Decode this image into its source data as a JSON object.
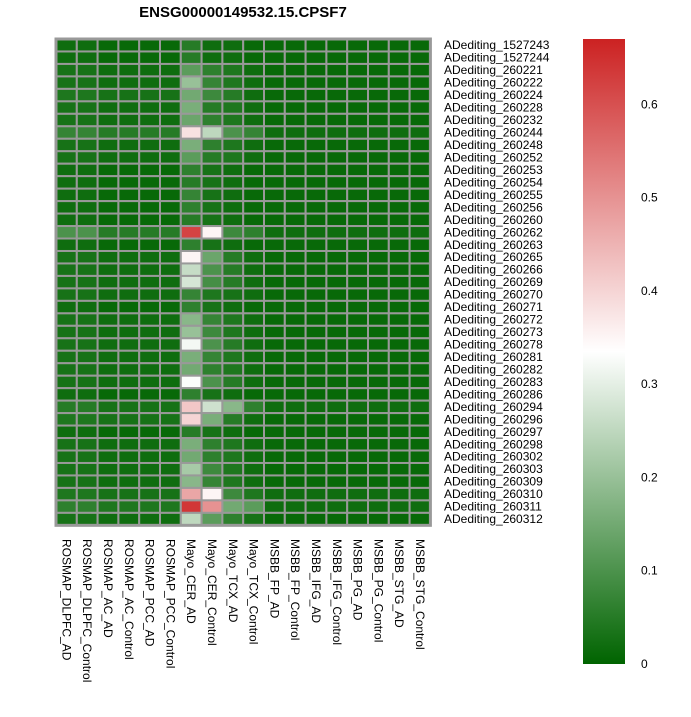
{
  "chart_data": {
    "type": "heatmap",
    "title": "ENSG00000149532.15.CPSF7",
    "columns": [
      "ROSMAP_DLPFC_AD",
      "ROSMAP_DLPFC_Control",
      "ROSMAP_AC_AD",
      "ROSMAP_AC_Control",
      "ROSMAP_PCC_AD",
      "ROSMAP_PCC_Control",
      "Mayo_CER_AD",
      "Mayo_CER_Control",
      "Mayo_TCX_AD",
      "Mayo_TCX_Control",
      "MSBB_FP_AD",
      "MSBB_FP_Control",
      "MSBB_IFG_AD",
      "MSBB_IFG_Control",
      "MSBB_PG_AD",
      "MSBB_PG_Control",
      "MSBB_STG_AD",
      "MSBB_STG_Control"
    ],
    "rows": [
      "ADediting_1527243",
      "ADediting_1527244",
      "ADediting_260221",
      "ADediting_260222",
      "ADediting_260224",
      "ADediting_260228",
      "ADediting_260232",
      "ADediting_260244",
      "ADediting_260248",
      "ADediting_260252",
      "ADediting_260253",
      "ADediting_260254",
      "ADediting_260255",
      "ADediting_260256",
      "ADediting_260260",
      "ADediting_260262",
      "ADediting_260263",
      "ADediting_260265",
      "ADediting_260266",
      "ADediting_260269",
      "ADediting_260270",
      "ADediting_260271",
      "ADediting_260272",
      "ADediting_260273",
      "ADediting_260278",
      "ADediting_260281",
      "ADediting_260282",
      "ADediting_260283",
      "ADediting_260286",
      "ADediting_260294",
      "ADediting_260296",
      "ADediting_260297",
      "ADediting_260298",
      "ADediting_260302",
      "ADediting_260303",
      "ADediting_260309",
      "ADediting_260310",
      "ADediting_260311",
      "ADediting_260312"
    ],
    "values": [
      [
        0.02,
        0.02,
        0.01,
        0.01,
        0.01,
        0.01,
        0.05,
        0.02,
        0.02,
        0.01,
        0.01,
        0.01,
        0.01,
        0.01,
        0.01,
        0.01,
        0.01,
        0.01
      ],
      [
        0.02,
        0.02,
        0.01,
        0.01,
        0.01,
        0.01,
        0.05,
        0.02,
        0.02,
        0.01,
        0.01,
        0.01,
        0.01,
        0.01,
        0.01,
        0.01,
        0.01,
        0.01
      ],
      [
        0.03,
        0.03,
        0.02,
        0.02,
        0.02,
        0.02,
        0.12,
        0.06,
        0.04,
        0.02,
        0.01,
        0.01,
        0.01,
        0.01,
        0.01,
        0.01,
        0.01,
        0.01
      ],
      [
        0.03,
        0.03,
        0.02,
        0.02,
        0.02,
        0.02,
        0.2,
        0.07,
        0.04,
        0.02,
        0.01,
        0.01,
        0.01,
        0.01,
        0.01,
        0.01,
        0.01,
        0.01
      ],
      [
        0.04,
        0.04,
        0.03,
        0.03,
        0.03,
        0.03,
        0.15,
        0.08,
        0.05,
        0.02,
        0.01,
        0.01,
        0.01,
        0.01,
        0.01,
        0.01,
        0.01,
        0.01
      ],
      [
        0.03,
        0.03,
        0.02,
        0.02,
        0.02,
        0.02,
        0.16,
        0.05,
        0.04,
        0.02,
        0.01,
        0.01,
        0.01,
        0.01,
        0.01,
        0.01,
        0.01,
        0.01
      ],
      [
        0.03,
        0.03,
        0.02,
        0.02,
        0.02,
        0.02,
        0.14,
        0.06,
        0.04,
        0.02,
        0.01,
        0.01,
        0.01,
        0.01,
        0.01,
        0.01,
        0.01,
        0.01
      ],
      [
        0.07,
        0.07,
        0.05,
        0.05,
        0.05,
        0.05,
        0.38,
        0.25,
        0.1,
        0.07,
        0.02,
        0.02,
        0.02,
        0.02,
        0.02,
        0.02,
        0.02,
        0.02
      ],
      [
        0.03,
        0.03,
        0.02,
        0.02,
        0.02,
        0.02,
        0.16,
        0.06,
        0.04,
        0.02,
        0.01,
        0.01,
        0.01,
        0.01,
        0.01,
        0.01,
        0.01,
        0.01
      ],
      [
        0.03,
        0.03,
        0.02,
        0.02,
        0.02,
        0.02,
        0.12,
        0.05,
        0.04,
        0.02,
        0.01,
        0.01,
        0.01,
        0.01,
        0.01,
        0.01,
        0.01,
        0.01
      ],
      [
        0.02,
        0.02,
        0.01,
        0.01,
        0.01,
        0.01,
        0.06,
        0.03,
        0.02,
        0.01,
        0.01,
        0.01,
        0.01,
        0.01,
        0.01,
        0.01,
        0.01,
        0.01
      ],
      [
        0.02,
        0.02,
        0.01,
        0.01,
        0.01,
        0.01,
        0.05,
        0.03,
        0.02,
        0.01,
        0.01,
        0.01,
        0.01,
        0.01,
        0.01,
        0.01,
        0.01,
        0.01
      ],
      [
        0.02,
        0.02,
        0.01,
        0.01,
        0.01,
        0.01,
        0.07,
        0.03,
        0.02,
        0.01,
        0.01,
        0.01,
        0.01,
        0.01,
        0.01,
        0.01,
        0.01,
        0.01
      ],
      [
        0.02,
        0.02,
        0.01,
        0.01,
        0.01,
        0.01,
        0.06,
        0.03,
        0.02,
        0.01,
        0.01,
        0.01,
        0.01,
        0.01,
        0.01,
        0.01,
        0.01,
        0.01
      ],
      [
        0.02,
        0.02,
        0.01,
        0.01,
        0.01,
        0.01,
        0.05,
        0.03,
        0.02,
        0.01,
        0.01,
        0.01,
        0.01,
        0.01,
        0.01,
        0.01,
        0.01,
        0.01
      ],
      [
        0.1,
        0.1,
        0.05,
        0.05,
        0.05,
        0.05,
        0.62,
        0.35,
        0.08,
        0.06,
        0.02,
        0.02,
        0.02,
        0.02,
        0.02,
        0.02,
        0.02,
        0.02
      ],
      [
        0.02,
        0.02,
        0.01,
        0.01,
        0.01,
        0.01,
        0.06,
        0.03,
        0.02,
        0.01,
        0.01,
        0.01,
        0.01,
        0.01,
        0.01,
        0.01,
        0.01,
        0.01
      ],
      [
        0.03,
        0.03,
        0.02,
        0.02,
        0.02,
        0.02,
        0.35,
        0.14,
        0.05,
        0.02,
        0.01,
        0.01,
        0.01,
        0.01,
        0.01,
        0.01,
        0.01,
        0.01
      ],
      [
        0.03,
        0.03,
        0.02,
        0.02,
        0.02,
        0.02,
        0.26,
        0.1,
        0.05,
        0.02,
        0.01,
        0.01,
        0.01,
        0.01,
        0.01,
        0.01,
        0.01,
        0.01
      ],
      [
        0.03,
        0.03,
        0.02,
        0.02,
        0.02,
        0.02,
        0.28,
        0.09,
        0.05,
        0.02,
        0.01,
        0.01,
        0.01,
        0.01,
        0.01,
        0.01,
        0.01,
        0.01
      ],
      [
        0.03,
        0.03,
        0.02,
        0.02,
        0.02,
        0.02,
        0.07,
        0.04,
        0.03,
        0.02,
        0.01,
        0.01,
        0.01,
        0.01,
        0.01,
        0.01,
        0.01,
        0.01
      ],
      [
        0.02,
        0.02,
        0.01,
        0.01,
        0.01,
        0.01,
        0.06,
        0.03,
        0.02,
        0.01,
        0.01,
        0.01,
        0.01,
        0.01,
        0.01,
        0.01,
        0.01,
        0.01
      ],
      [
        0.03,
        0.03,
        0.02,
        0.02,
        0.02,
        0.02,
        0.18,
        0.07,
        0.04,
        0.02,
        0.01,
        0.01,
        0.01,
        0.01,
        0.01,
        0.01,
        0.01,
        0.01
      ],
      [
        0.03,
        0.03,
        0.02,
        0.02,
        0.02,
        0.02,
        0.2,
        0.08,
        0.04,
        0.02,
        0.01,
        0.01,
        0.01,
        0.01,
        0.01,
        0.01,
        0.01,
        0.01
      ],
      [
        0.03,
        0.03,
        0.02,
        0.02,
        0.02,
        0.02,
        0.32,
        0.1,
        0.05,
        0.02,
        0.01,
        0.01,
        0.01,
        0.01,
        0.01,
        0.01,
        0.01,
        0.01
      ],
      [
        0.03,
        0.03,
        0.02,
        0.02,
        0.02,
        0.02,
        0.16,
        0.07,
        0.04,
        0.02,
        0.01,
        0.01,
        0.01,
        0.01,
        0.01,
        0.01,
        0.01,
        0.01
      ],
      [
        0.03,
        0.03,
        0.02,
        0.02,
        0.02,
        0.02,
        0.15,
        0.06,
        0.04,
        0.02,
        0.01,
        0.01,
        0.01,
        0.01,
        0.01,
        0.01,
        0.01,
        0.01
      ],
      [
        0.03,
        0.03,
        0.02,
        0.02,
        0.02,
        0.02,
        0.33,
        0.1,
        0.05,
        0.02,
        0.01,
        0.01,
        0.01,
        0.01,
        0.01,
        0.01,
        0.01,
        0.01
      ],
      [
        0.02,
        0.02,
        0.01,
        0.01,
        0.01,
        0.01,
        0.06,
        0.03,
        0.02,
        0.01,
        0.01,
        0.01,
        0.01,
        0.01,
        0.01,
        0.01,
        0.01,
        0.01
      ],
      [
        0.05,
        0.05,
        0.03,
        0.03,
        0.03,
        0.03,
        0.42,
        0.27,
        0.18,
        0.06,
        0.02,
        0.02,
        0.02,
        0.02,
        0.02,
        0.02,
        0.02,
        0.02
      ],
      [
        0.04,
        0.04,
        0.03,
        0.03,
        0.03,
        0.03,
        0.4,
        0.16,
        0.05,
        0.02,
        0.01,
        0.01,
        0.01,
        0.01,
        0.01,
        0.01,
        0.01,
        0.01
      ],
      [
        0.02,
        0.02,
        0.01,
        0.01,
        0.01,
        0.01,
        0.05,
        0.03,
        0.02,
        0.01,
        0.01,
        0.01,
        0.01,
        0.01,
        0.01,
        0.01,
        0.01,
        0.01
      ],
      [
        0.03,
        0.03,
        0.02,
        0.02,
        0.02,
        0.02,
        0.16,
        0.06,
        0.04,
        0.02,
        0.01,
        0.01,
        0.01,
        0.01,
        0.01,
        0.01,
        0.01,
        0.01
      ],
      [
        0.03,
        0.03,
        0.02,
        0.02,
        0.02,
        0.02,
        0.15,
        0.06,
        0.04,
        0.02,
        0.01,
        0.01,
        0.01,
        0.01,
        0.01,
        0.01,
        0.01,
        0.01
      ],
      [
        0.03,
        0.03,
        0.02,
        0.02,
        0.02,
        0.02,
        0.22,
        0.08,
        0.04,
        0.02,
        0.01,
        0.01,
        0.01,
        0.01,
        0.01,
        0.01,
        0.01,
        0.01
      ],
      [
        0.03,
        0.03,
        0.02,
        0.02,
        0.02,
        0.02,
        0.18,
        0.07,
        0.04,
        0.02,
        0.01,
        0.01,
        0.01,
        0.01,
        0.01,
        0.01,
        0.01,
        0.01
      ],
      [
        0.04,
        0.04,
        0.03,
        0.03,
        0.03,
        0.03,
        0.47,
        0.35,
        0.08,
        0.04,
        0.02,
        0.02,
        0.02,
        0.02,
        0.02,
        0.02,
        0.02,
        0.02
      ],
      [
        0.06,
        0.06,
        0.04,
        0.04,
        0.04,
        0.04,
        0.64,
        0.5,
        0.15,
        0.12,
        0.02,
        0.02,
        0.02,
        0.02,
        0.02,
        0.02,
        0.02,
        0.02
      ],
      [
        0.03,
        0.03,
        0.02,
        0.02,
        0.02,
        0.02,
        0.25,
        0.12,
        0.06,
        0.03,
        0.01,
        0.01,
        0.01,
        0.01,
        0.01,
        0.01,
        0.01,
        0.01
      ]
    ],
    "colorbar": {
      "min": 0,
      "max": 0.67,
      "midpoint": 0.335,
      "ticks": [
        0,
        0.1,
        0.2,
        0.3,
        0.4,
        0.5,
        0.6
      ],
      "tick_labels": [
        "0",
        "0.1",
        "0.2",
        "0.3",
        "0.4",
        "0.5",
        "0.6"
      ],
      "low_color": "#006400",
      "mid_color": "#ffffff",
      "high_color": "#cc2222"
    },
    "grid_color": "#999999"
  }
}
